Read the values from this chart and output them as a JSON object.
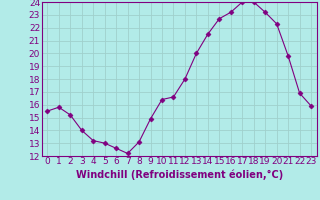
{
  "x": [
    0,
    1,
    2,
    3,
    4,
    5,
    6,
    7,
    8,
    9,
    10,
    11,
    12,
    13,
    14,
    15,
    16,
    17,
    18,
    19,
    20,
    21,
    22,
    23
  ],
  "y": [
    15.5,
    15.8,
    15.2,
    14.0,
    13.2,
    13.0,
    12.6,
    12.2,
    13.1,
    14.9,
    16.4,
    16.6,
    18.0,
    20.0,
    21.5,
    22.7,
    23.2,
    24.0,
    24.0,
    23.2,
    22.3,
    19.8,
    16.9,
    15.9
  ],
  "line_color": "#800080",
  "marker": "D",
  "marker_size": 2.5,
  "bg_color": "#b2ebe8",
  "grid_color": "#a0d0cc",
  "xlabel": "Windchill (Refroidissement éolien,°C)",
  "xlim": [
    -0.5,
    23.5
  ],
  "ylim": [
    12,
    24
  ],
  "yticks": [
    12,
    13,
    14,
    15,
    16,
    17,
    18,
    19,
    20,
    21,
    22,
    23,
    24
  ],
  "xticks": [
    0,
    1,
    2,
    3,
    4,
    5,
    6,
    7,
    8,
    9,
    10,
    11,
    12,
    13,
    14,
    15,
    16,
    17,
    18,
    19,
    20,
    21,
    22,
    23
  ],
  "tick_fontsize": 6.5,
  "label_fontsize": 7
}
